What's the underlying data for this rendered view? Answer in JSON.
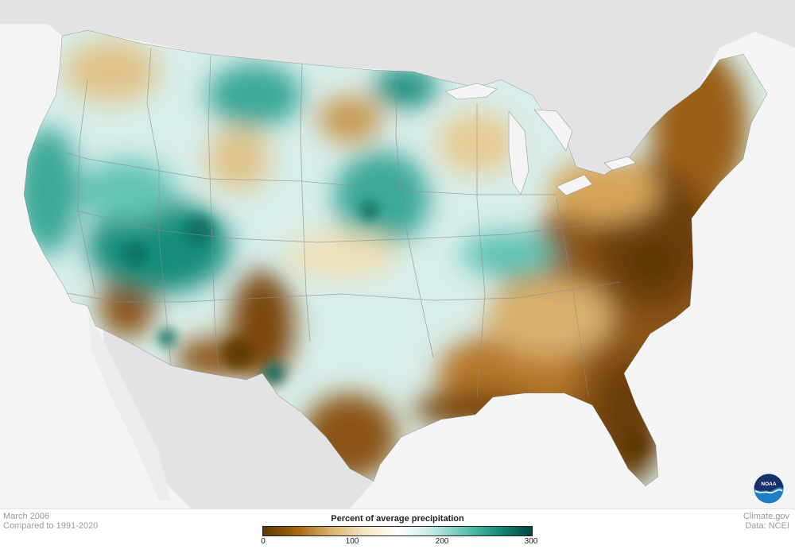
{
  "map": {
    "month": "March 2006",
    "baseline": "Compared to 1991-2020",
    "source_site": "Climate.gov",
    "source_data": "Data: NCEI"
  },
  "legend": {
    "title": "Percent of average precipitation",
    "ticks": [
      "0",
      "100",
      "200",
      "300"
    ],
    "tick_values": [
      0,
      100,
      200,
      300
    ],
    "min": 0,
    "max": 300,
    "colors": [
      "#5c3806",
      "#a4650f",
      "#d8b06c",
      "#f4e6c2",
      "#ffffff",
      "#c7ebe4",
      "#63c4b3",
      "#168d7c",
      "#00443a"
    ]
  },
  "logo": {
    "text": "NOAA",
    "icon": "noaa-logo"
  },
  "colors": {
    "dry": "#8b5413",
    "very_dry": "#6a3d07",
    "wet": "#3aa898",
    "very_wet": "#0d6d5f",
    "land_outside": "#e2e2e2",
    "water": "#f4f4f4"
  }
}
